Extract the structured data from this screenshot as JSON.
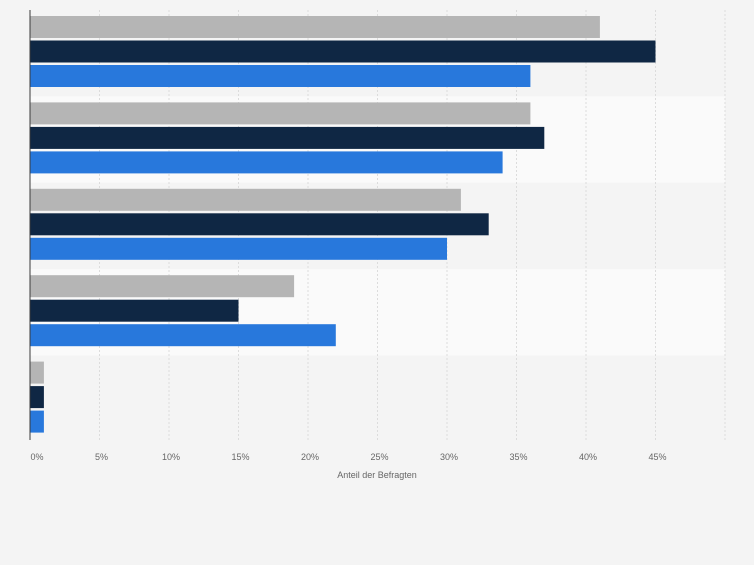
{
  "chart_data": {
    "type": "bar",
    "orientation": "horizontal",
    "xlabel": "Anteil der Befragten",
    "ylabel": "",
    "x_unit": "%",
    "xlim": [
      0,
      50
    ],
    "x_ticks": [
      "0%",
      "5%",
      "10%",
      "15%",
      "20%",
      "25%",
      "30%",
      "35%",
      "40%",
      "45%"
    ],
    "grid": true,
    "legend": "none",
    "categories": [
      "",
      "",
      "",
      "",
      ""
    ],
    "series": [
      {
        "color": "#b5b5b5",
        "values": [
          41,
          36,
          31,
          19,
          1
        ]
      },
      {
        "color": "#0f2744",
        "values": [
          45,
          37,
          33,
          15,
          1
        ]
      },
      {
        "color": "#2878dc",
        "values": [
          36,
          34,
          30,
          22,
          1
        ]
      }
    ]
  },
  "colors": {
    "background": "#f4f4f4",
    "band_light": "#fafafa",
    "band_dark": "#f4f4f4",
    "grid": "#dcdcdc",
    "axis": "#3a3a3a",
    "tick_text": "#666666"
  }
}
